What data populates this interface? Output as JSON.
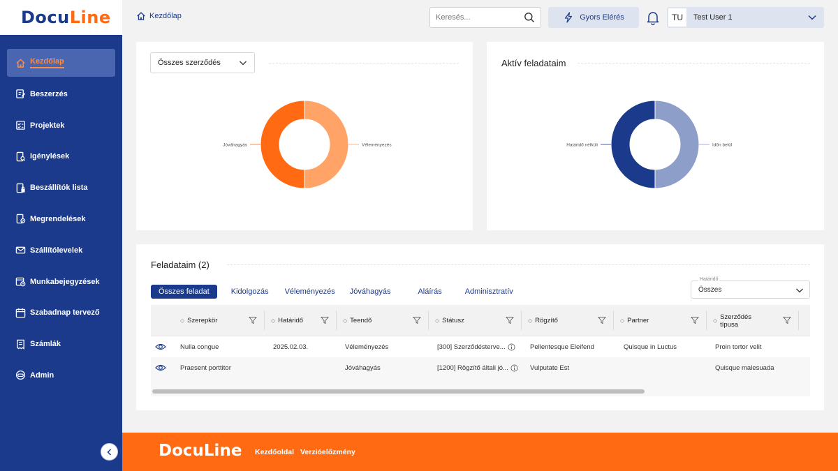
{
  "app": {
    "logo_part1": "Docu",
    "logo_part2": "Line"
  },
  "sidebar": {
    "items": [
      {
        "label": "Kezdőlap",
        "icon": "home-icon",
        "active": true
      },
      {
        "label": "Beszerzés",
        "icon": "edit-document-icon"
      },
      {
        "label": "Projektek",
        "icon": "checklist-icon"
      },
      {
        "label": "Igénylések",
        "icon": "document-search-icon"
      },
      {
        "label": "Beszállítók lista",
        "icon": "document-lock-icon"
      },
      {
        "label": "Megrendelések",
        "icon": "document-check-icon"
      },
      {
        "label": "Szállítólevelek",
        "icon": "mail-icon"
      },
      {
        "label": "Munkabejegyzések",
        "icon": "calendar-clock-icon"
      },
      {
        "label": "Szabadnap tervező",
        "icon": "calendar-icon"
      },
      {
        "label": "Számlák",
        "icon": "invoice-icon"
      },
      {
        "label": "Admin",
        "icon": "admin-icon"
      }
    ]
  },
  "topbar": {
    "breadcrumb": "Kezdőlap",
    "search_placeholder": "Keresés...",
    "quick_access": "Gyors Elérés",
    "user_initials": "TU",
    "user_name": "Test User 1"
  },
  "contracts_card": {
    "select_value": "Összes szerződés"
  },
  "tasks_card": {
    "title": "Aktív feladataim"
  },
  "chart_data": [
    {
      "type": "pie",
      "donut": true,
      "categories": [
        "Véleményezés",
        "Jóváhagyás"
      ],
      "values": [
        50,
        50
      ],
      "colors": [
        "#ffa466",
        "#ff6a13"
      ]
    },
    {
      "type": "pie",
      "donut": true,
      "categories": [
        "Időn belül",
        "Határidő nélküli"
      ],
      "values": [
        50,
        50
      ],
      "colors": [
        "#8d9ec9",
        "#1b3a8c"
      ]
    }
  ],
  "my_tasks": {
    "title": "Feladataim (2)",
    "tabs": [
      "Összes feladat",
      "Kidolgozás",
      "Véleményezés",
      "Jóváhagyás",
      "Aláírás",
      "Adminisztratív"
    ],
    "deadline_label": "Határidő",
    "deadline_value": "Összes",
    "columns": [
      "Szerepkör",
      "Határidő",
      "Teendő",
      "Státusz",
      "Rögzítő",
      "Partner",
      "Szerződés típusa"
    ],
    "rows": [
      {
        "role": "Nulla congue",
        "deadline": "2025.02.03.",
        "task": "Véleményezés",
        "status": "[300] Szerződésterve...",
        "recorder": "Pellentesque Eleifend",
        "partner": "Quisque in Luctus",
        "type": "Proin tortor velit"
      },
      {
        "role": "Praesent porttitor",
        "deadline": "",
        "task": "Jóváhagyás",
        "status": "[1200] Rögzítő általi jó...",
        "recorder": "Vulputate Est",
        "partner": "",
        "type": "Quisque malesuada"
      }
    ]
  },
  "footer": {
    "logo": "DocuLine",
    "links": [
      "Kezdőoldal",
      "Verzióelőzmény"
    ]
  }
}
